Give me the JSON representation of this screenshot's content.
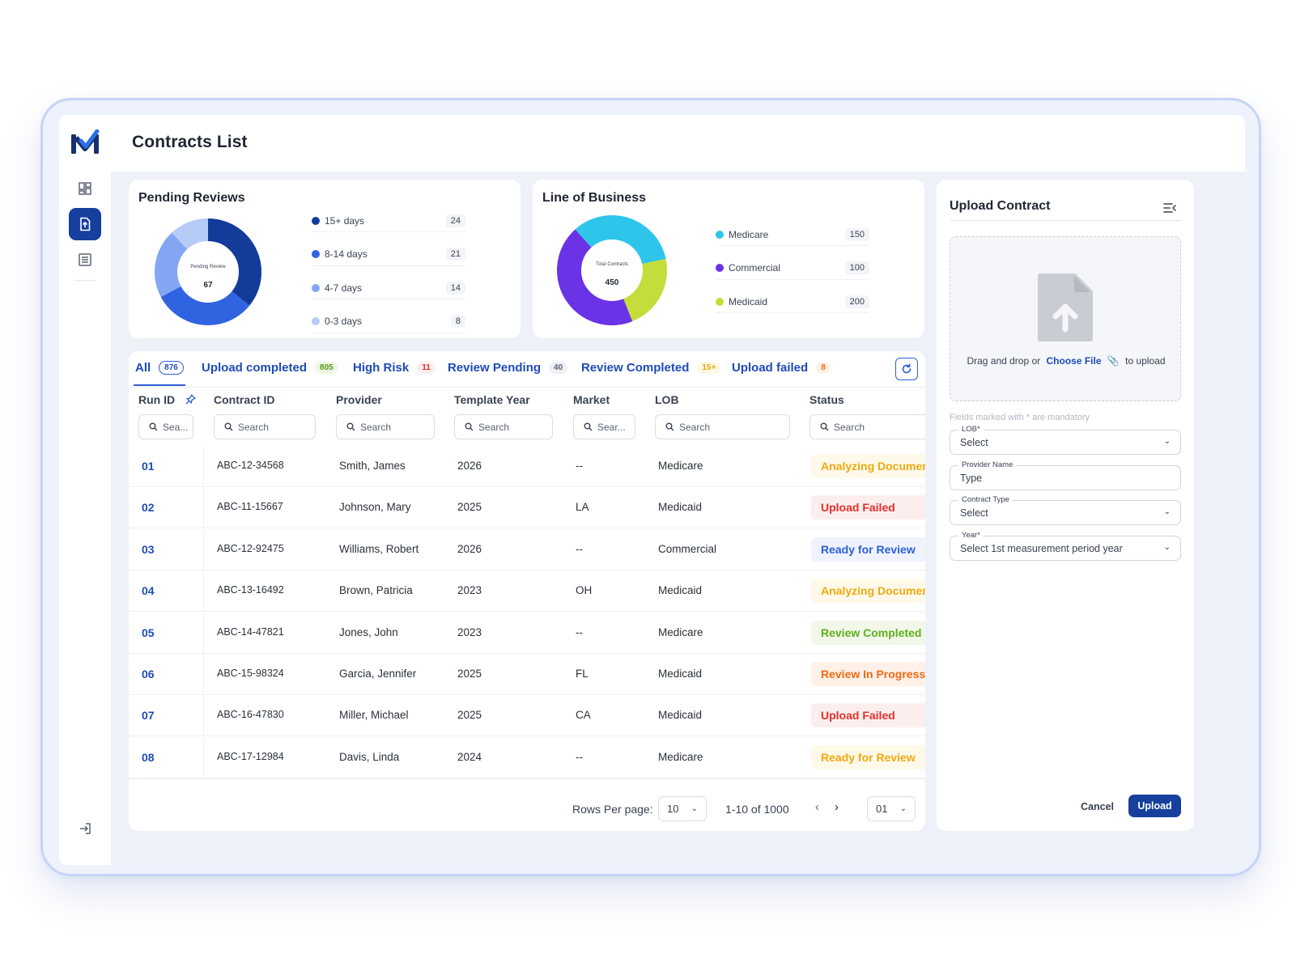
{
  "app": {
    "title": "Contracts List"
  },
  "colors": {
    "primary": "#163f9e",
    "link": "#1f4bb8",
    "accent": "#2d5fd8"
  },
  "sidebar": {
    "items": [
      {
        "name": "dashboard",
        "icon": "dashboard-icon",
        "active": false
      },
      {
        "name": "upload-contracts",
        "icon": "file-upload-icon",
        "active": true
      },
      {
        "name": "list",
        "icon": "list-icon",
        "active": false
      }
    ],
    "bottom_icon": "logout-icon"
  },
  "pending_reviews": {
    "title": "Pending Reviews",
    "center_label": "Pending Review",
    "center_value": "67",
    "items": [
      {
        "label": "15+ days",
        "count": "24",
        "value": 24,
        "color": "#123b9a"
      },
      {
        "label": "8-14 days",
        "count": "21",
        "value": 21,
        "color": "#2f63df"
      },
      {
        "label": "4-7 days",
        "count": "14",
        "value": 14,
        "color": "#84a6f2"
      },
      {
        "label": "0-3 days",
        "count": "8",
        "value": 8,
        "color": "#b7cbf7"
      }
    ]
  },
  "line_of_business": {
    "title": "Line of Business",
    "center_label": "Total Contracts",
    "center_value": "450",
    "items": [
      {
        "label": "Medicare",
        "count": "150",
        "value": 150,
        "color": "#2ec5ea"
      },
      {
        "label": "Commercial",
        "count": "100",
        "value": 100,
        "color": "#c5dd3a"
      },
      {
        "label": "Medicaid",
        "count": "200",
        "value": 200,
        "color": "#6a33e6"
      }
    ],
    "legend_colors": [
      "#2ec5ea",
      "#6a33e6",
      "#c5dd3a"
    ]
  },
  "tabs": [
    {
      "label": "All",
      "badge": "876",
      "badge_style": "outline"
    },
    {
      "label": "Upload completed",
      "badge": "805",
      "badge_style": "green"
    },
    {
      "label": "High Risk",
      "badge": "11",
      "badge_style": "red"
    },
    {
      "label": "Review Pending",
      "badge": "40",
      "badge_style": "gray"
    },
    {
      "label": "Review Completed",
      "badge": "15+",
      "badge_style": "yellow"
    },
    {
      "label": "Upload failed",
      "badge": "8",
      "badge_style": "orange"
    }
  ],
  "table": {
    "columns": [
      "Run ID",
      "Contract ID",
      "Provider",
      "Template Year",
      "Market",
      "LOB",
      "Status"
    ],
    "filters": [
      "Sea...",
      "Search",
      "Search",
      "Search",
      "Sear...",
      "Search",
      "Search"
    ],
    "rows": [
      {
        "run_id": "01",
        "contract_id": "ABC-12-34568",
        "provider": "Smith, James",
        "year": "2026",
        "market": "--",
        "lob": "Medicare",
        "status": "Analyzing Document",
        "status_color": "#f0a90f",
        "status_bg": "#fff9ea"
      },
      {
        "run_id": "02",
        "contract_id": "ABC-11-15667",
        "provider": "Johnson, Mary",
        "year": "2025",
        "market": "LA",
        "lob": "Medicaid",
        "status": "Upload Failed",
        "status_color": "#e2302b",
        "status_bg": "#fdeeee"
      },
      {
        "run_id": "03",
        "contract_id": "ABC-12-92475",
        "provider": "Williams, Robert",
        "year": "2026",
        "market": "--",
        "lob": "Commercial",
        "status": "Ready for Review",
        "status_color": "#2d5fd8",
        "status_bg": "#eef3fd"
      },
      {
        "run_id": "04",
        "contract_id": "ABC-13-16492",
        "provider": "Brown, Patricia",
        "year": "2023",
        "market": "OH",
        "lob": "Medicaid",
        "status": "Analyzing Document",
        "status_color": "#f0a90f",
        "status_bg": "#fff9ea"
      },
      {
        "run_id": "05",
        "contract_id": "ABC-14-47821",
        "provider": "Jones, John",
        "year": "2023",
        "market": "--",
        "lob": "Medicare",
        "status": "Review Completed",
        "status_color": "#5fae1f",
        "status_bg": "#f1f8e8"
      },
      {
        "run_id": "06",
        "contract_id": "ABC-15-98324",
        "provider": "Garcia, Jennifer",
        "year": "2025",
        "market": "FL",
        "lob": "Medicaid",
        "status": "Review In Progress",
        "status_color": "#f06a14",
        "status_bg": "#fff1e8"
      },
      {
        "run_id": "07",
        "contract_id": "ABC-16-47830",
        "provider": "Miller, Michael",
        "year": "2025",
        "market": "CA",
        "lob": "Medicaid",
        "status": "Upload Failed",
        "status_color": "#e2302b",
        "status_bg": "#fdeeee"
      },
      {
        "run_id": "08",
        "contract_id": "ABC-17-12984",
        "provider": "Davis, Linda",
        "year": "2024",
        "market": "--",
        "lob": "Medicare",
        "status": "Ready for Review",
        "status_color": "#f0a90f",
        "status_bg": "#fff9ea"
      }
    ]
  },
  "pagination": {
    "rows_per_page_label": "Rows Per page:",
    "rows_per_page": "10",
    "range": "1-10 of 1000",
    "page": "01"
  },
  "upload": {
    "title": "Upload Contract",
    "drop_text": "Drag and drop or",
    "choose_file": "Choose File",
    "to_upload": "to upload",
    "mandatory_note": "Fields marked with * are mandatory",
    "fields": [
      {
        "label": "LOB*",
        "value": "Select",
        "dropdown": true
      },
      {
        "label": "Provider Name",
        "value": "Type",
        "dropdown": false
      },
      {
        "label": "Contract Type",
        "value": "Select",
        "dropdown": true
      },
      {
        "label": "Year*",
        "value": "Select 1st measurement period year",
        "dropdown": true
      }
    ],
    "cancel": "Cancel",
    "submit": "Upload"
  }
}
